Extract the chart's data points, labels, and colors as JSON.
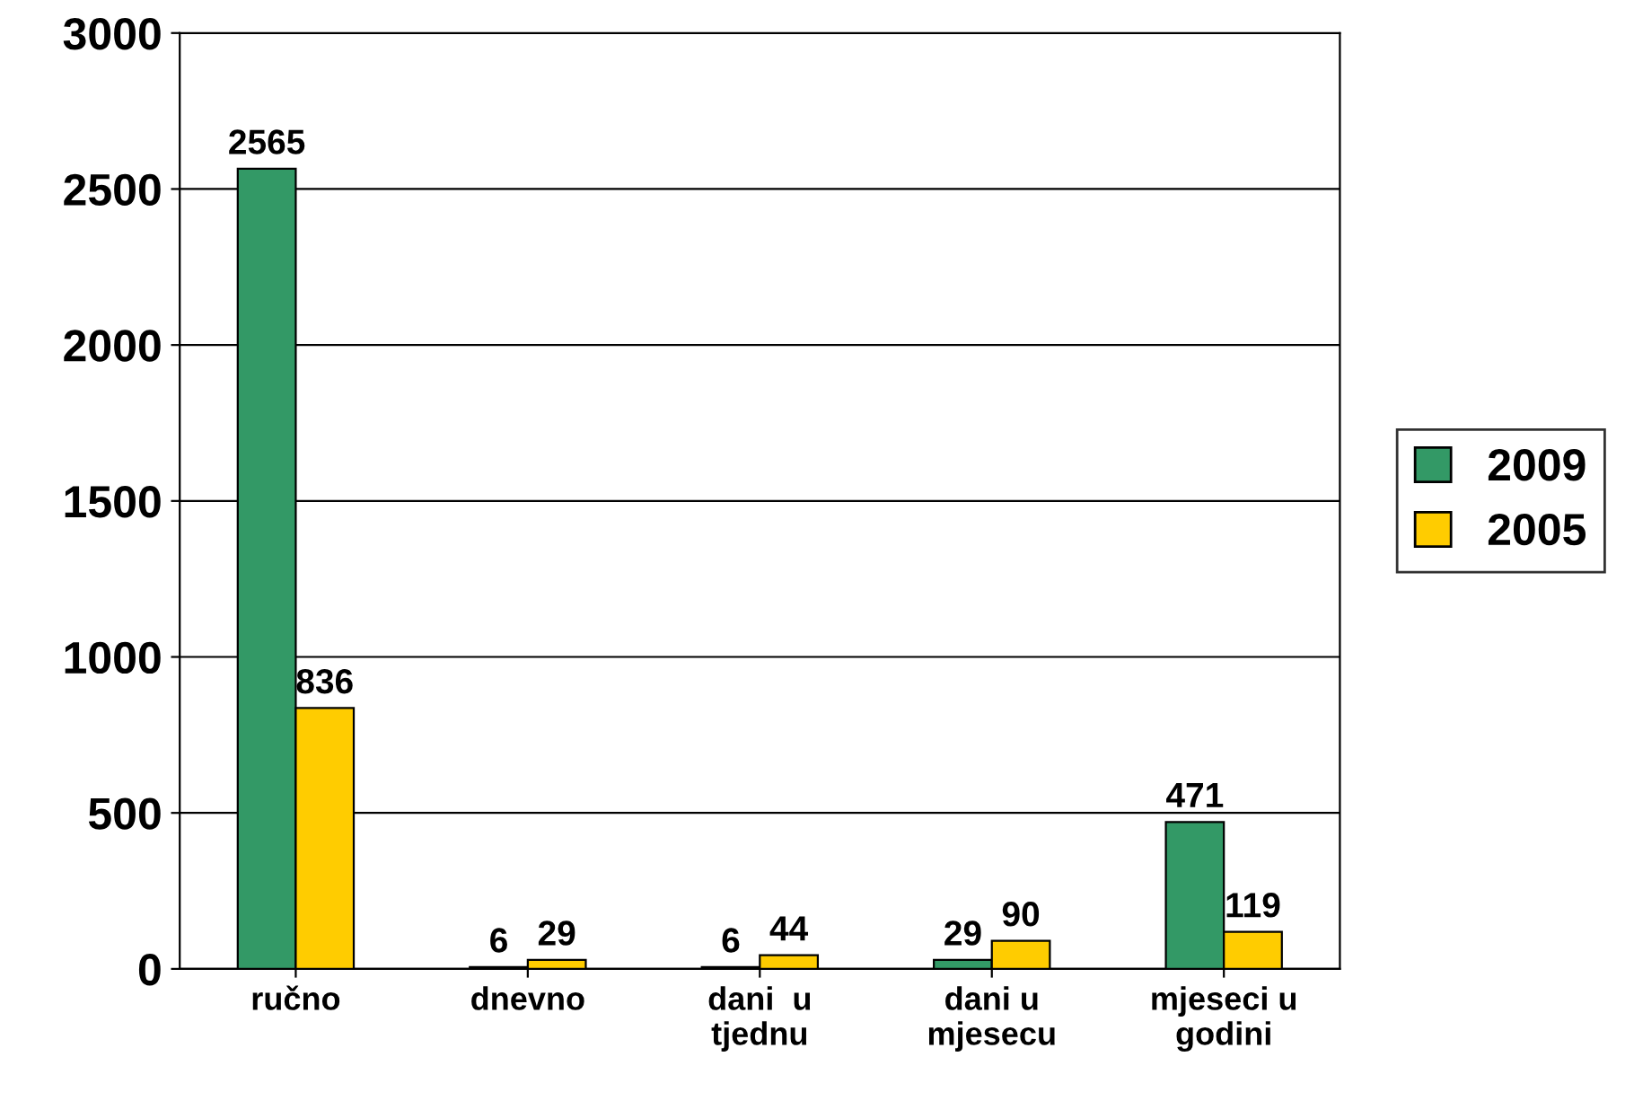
{
  "chart_data": {
    "type": "bar",
    "categories": [
      "ručno",
      "dnevno",
      "dani  u\ntjednu",
      "dani u\nmjesecu",
      "mjeseci u\ngodini"
    ],
    "series": [
      {
        "name": "2009",
        "color": "#339966",
        "values": [
          2565,
          6,
          6,
          29,
          471
        ]
      },
      {
        "name": "2005",
        "color": "#ffcc00",
        "values": [
          836,
          29,
          44,
          90,
          119
        ]
      }
    ],
    "ylim": [
      0,
      3000
    ],
    "yticks": [
      0,
      500,
      1000,
      1500,
      2000,
      2500,
      3000
    ],
    "grid": "y",
    "legend": "right",
    "data_labels": true
  }
}
